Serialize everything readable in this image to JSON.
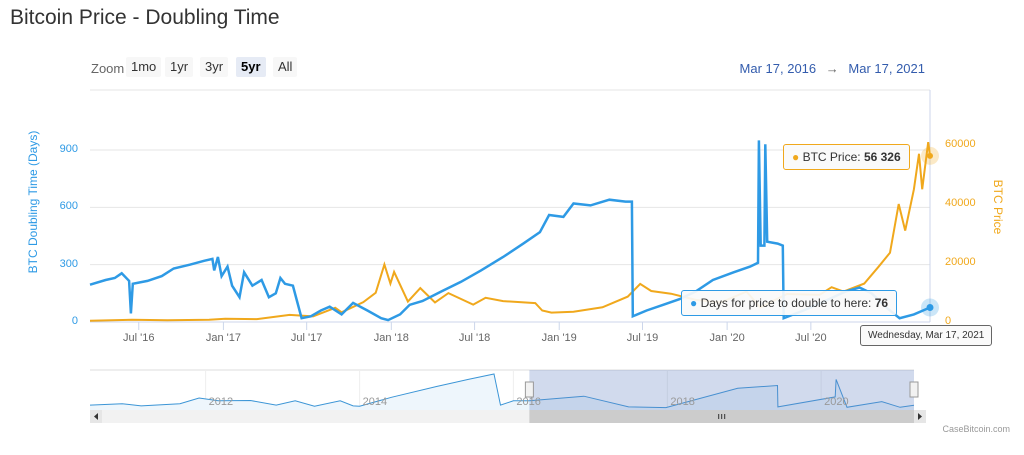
{
  "title": "Bitcoin Price - Doubling Time",
  "range_selector": {
    "label": "Zoom",
    "buttons": [
      "1mo",
      "1yr",
      "3yr",
      "5yr",
      "All"
    ],
    "active": "5yr",
    "from": "Mar 17, 2016",
    "arrow": "→",
    "to": "Mar 17, 2021"
  },
  "colors": {
    "doubling": "#2e9ae5",
    "price": "#f0a81c",
    "navigator_mask": "#ccd6eb"
  },
  "tooltips": {
    "price": {
      "label": "BTC Price:",
      "value": "56 326"
    },
    "doubling": {
      "label": "Days for price to double to here:",
      "value": "76"
    },
    "date": "Wednesday, Mar 17, 2021"
  },
  "credit": "CaseBitcoin.com",
  "chart_data": {
    "type": "line",
    "title": "Bitcoin Price - Doubling Time",
    "x_range": [
      "2016-03-17",
      "2021-03-17"
    ],
    "x_ticks": [
      [
        "2016-07-01",
        "Jul '16"
      ],
      [
        "2017-01-01",
        "Jan '17"
      ],
      [
        "2017-07-01",
        "Jul '17"
      ],
      [
        "2018-01-01",
        "Jan '18"
      ],
      [
        "2018-07-01",
        "Jul '18"
      ],
      [
        "2019-01-01",
        "Jan '19"
      ],
      [
        "2019-07-01",
        "Jul '19"
      ],
      [
        "2020-01-01",
        "Jan '20"
      ],
      [
        "2020-07-01",
        "Jul '20"
      ]
    ],
    "y_left": {
      "label": "BTC Doubling Time (Days)",
      "ticks": [
        0,
        300,
        600,
        900
      ],
      "range": [
        0,
        950
      ]
    },
    "y_right": {
      "label": "BTC Price",
      "ticks": [
        0,
        20000,
        40000,
        60000
      ],
      "range": [
        0,
        60000
      ]
    },
    "grid": true,
    "series": [
      {
        "name": "Days for price to double to here",
        "axis": "left",
        "points": [
          [
            "2016-03-17",
            195
          ],
          [
            "2016-04-20",
            220
          ],
          [
            "2016-05-10",
            230
          ],
          [
            "2016-05-25",
            255
          ],
          [
            "2016-06-10",
            215
          ],
          [
            "2016-06-14",
            45
          ],
          [
            "2016-06-18",
            200
          ],
          [
            "2016-07-20",
            215
          ],
          [
            "2016-08-20",
            240
          ],
          [
            "2016-09-15",
            280
          ],
          [
            "2016-10-20",
            300
          ],
          [
            "2016-11-20",
            320
          ],
          [
            "2016-12-08",
            330
          ],
          [
            "2016-12-12",
            270
          ],
          [
            "2016-12-20",
            340
          ],
          [
            "2016-12-28",
            240
          ],
          [
            "2017-01-10",
            290
          ],
          [
            "2017-01-20",
            190
          ],
          [
            "2017-02-05",
            130
          ],
          [
            "2017-02-15",
            260
          ],
          [
            "2017-03-05",
            190
          ],
          [
            "2017-03-25",
            220
          ],
          [
            "2017-04-10",
            130
          ],
          [
            "2017-04-25",
            150
          ],
          [
            "2017-05-05",
            230
          ],
          [
            "2017-05-15",
            200
          ],
          [
            "2017-06-01",
            190
          ],
          [
            "2017-06-10",
            110
          ],
          [
            "2017-06-20",
            20
          ],
          [
            "2017-07-10",
            30
          ],
          [
            "2017-08-01",
            60
          ],
          [
            "2017-08-20",
            80
          ],
          [
            "2017-09-15",
            40
          ],
          [
            "2017-10-10",
            100
          ],
          [
            "2017-11-10",
            60
          ],
          [
            "2017-12-10",
            20
          ],
          [
            "2017-12-25",
            10
          ],
          [
            "2018-01-20",
            40
          ],
          [
            "2018-02-10",
            90
          ],
          [
            "2018-03-10",
            110
          ],
          [
            "2018-04-20",
            160
          ],
          [
            "2018-06-01",
            210
          ],
          [
            "2018-07-15",
            270
          ],
          [
            "2018-09-01",
            340
          ],
          [
            "2018-10-15",
            410
          ],
          [
            "2018-11-20",
            470
          ],
          [
            "2018-12-10",
            560
          ],
          [
            "2019-01-10",
            550
          ],
          [
            "2019-02-01",
            620
          ],
          [
            "2019-03-10",
            610
          ],
          [
            "2019-04-20",
            640
          ],
          [
            "2019-05-25",
            630
          ],
          [
            "2019-06-08",
            630
          ],
          [
            "2019-06-10",
            30
          ],
          [
            "2019-07-10",
            60
          ],
          [
            "2019-08-15",
            90
          ],
          [
            "2019-09-20",
            120
          ],
          [
            "2019-10-25",
            160
          ],
          [
            "2019-12-01",
            220
          ],
          [
            "2020-01-15",
            260
          ],
          [
            "2020-02-20",
            290
          ],
          [
            "2020-03-08",
            310
          ],
          [
            "2020-03-10",
            950
          ],
          [
            "2020-03-14",
            400
          ],
          [
            "2020-03-22",
            400
          ],
          [
            "2020-03-24",
            930
          ],
          [
            "2020-03-28",
            420
          ],
          [
            "2020-04-20",
            410
          ],
          [
            "2020-05-01",
            400
          ],
          [
            "2020-05-03",
            20
          ],
          [
            "2020-06-15",
            60
          ],
          [
            "2020-08-01",
            110
          ],
          [
            "2020-09-15",
            160
          ],
          [
            "2020-10-15",
            180
          ],
          [
            "2020-11-10",
            150
          ],
          [
            "2020-12-10",
            80
          ],
          [
            "2021-01-10",
            20
          ],
          [
            "2021-02-10",
            40
          ],
          [
            "2021-03-17",
            76
          ]
        ]
      },
      {
        "name": "BTC Price",
        "axis": "right",
        "points": [
          [
            "2016-03-17",
            415
          ],
          [
            "2016-06-17",
            760
          ],
          [
            "2016-09-01",
            575
          ],
          [
            "2016-12-01",
            750
          ],
          [
            "2017-01-05",
            1100
          ],
          [
            "2017-03-15",
            1000
          ],
          [
            "2017-05-25",
            2400
          ],
          [
            "2017-07-15",
            1900
          ],
          [
            "2017-09-01",
            4800
          ],
          [
            "2017-09-15",
            3300
          ],
          [
            "2017-11-01",
            6700
          ],
          [
            "2017-11-28",
            9900
          ],
          [
            "2017-12-17",
            19500
          ],
          [
            "2017-12-30",
            13000
          ],
          [
            "2018-01-07",
            17000
          ],
          [
            "2018-02-06",
            6900
          ],
          [
            "2018-03-05",
            11500
          ],
          [
            "2018-04-06",
            6600
          ],
          [
            "2018-05-05",
            9800
          ],
          [
            "2018-06-28",
            5900
          ],
          [
            "2018-07-25",
            8200
          ],
          [
            "2018-09-01",
            7100
          ],
          [
            "2018-11-10",
            6400
          ],
          [
            "2018-11-25",
            3900
          ],
          [
            "2018-12-15",
            3200
          ],
          [
            "2019-02-01",
            3450
          ],
          [
            "2019-04-05",
            5000
          ],
          [
            "2019-05-30",
            8600
          ],
          [
            "2019-06-26",
            12900
          ],
          [
            "2019-07-20",
            10500
          ],
          [
            "2019-09-01",
            9600
          ],
          [
            "2019-10-25",
            7500
          ],
          [
            "2019-12-18",
            6600
          ],
          [
            "2020-02-12",
            10300
          ],
          [
            "2020-03-13",
            4900
          ],
          [
            "2020-05-10",
            9500
          ],
          [
            "2020-07-20",
            9200
          ],
          [
            "2020-08-15",
            11800
          ],
          [
            "2020-09-10",
            10300
          ],
          [
            "2020-10-25",
            13000
          ],
          [
            "2020-11-25",
            18700
          ],
          [
            "2020-12-20",
            23500
          ],
          [
            "2021-01-08",
            40000
          ],
          [
            "2021-01-22",
            31000
          ],
          [
            "2021-02-10",
            45000
          ],
          [
            "2021-02-21",
            57000
          ],
          [
            "2021-02-28",
            45000
          ],
          [
            "2021-03-13",
            61000
          ],
          [
            "2021-03-17",
            56326
          ]
        ]
      }
    ],
    "navigator": {
      "x_ticks": [
        "2012",
        "2014",
        "2016",
        "2018",
        "2020"
      ],
      "selected_range": [
        "2016-03-17",
        "2021-03-17"
      ],
      "points": [
        [
          "2010-07-01",
          80
        ],
        [
          "2010-12-01",
          120
        ],
        [
          "2011-03-01",
          60
        ],
        [
          "2011-09-01",
          120
        ],
        [
          "2011-12-01",
          280
        ],
        [
          "2012-03-01",
          200
        ],
        [
          "2012-08-01",
          210
        ],
        [
          "2012-12-01",
          80
        ],
        [
          "2013-03-01",
          200
        ],
        [
          "2013-06-01",
          50
        ],
        [
          "2013-10-01",
          200
        ],
        [
          "2013-12-01",
          60
        ],
        [
          "2014-01-01",
          50
        ],
        [
          "2014-06-01",
          300
        ],
        [
          "2015-01-01",
          600
        ],
        [
          "2015-06-01",
          800
        ],
        [
          "2015-10-01",
          950
        ],
        [
          "2015-11-01",
          80
        ],
        [
          "2016-01-01",
          200
        ],
        [
          "2016-03-17",
          200
        ],
        [
          "2016-12-01",
          330
        ],
        [
          "2017-07-01",
          30
        ],
        [
          "2017-12-25",
          10
        ],
        [
          "2018-12-01",
          550
        ],
        [
          "2019-06-08",
          630
        ],
        [
          "2019-06-10",
          30
        ],
        [
          "2020-03-08",
          310
        ],
        [
          "2020-03-12",
          800
        ],
        [
          "2020-05-03",
          20
        ],
        [
          "2020-10-15",
          180
        ],
        [
          "2021-01-10",
          20
        ],
        [
          "2021-03-17",
          76
        ]
      ]
    }
  }
}
